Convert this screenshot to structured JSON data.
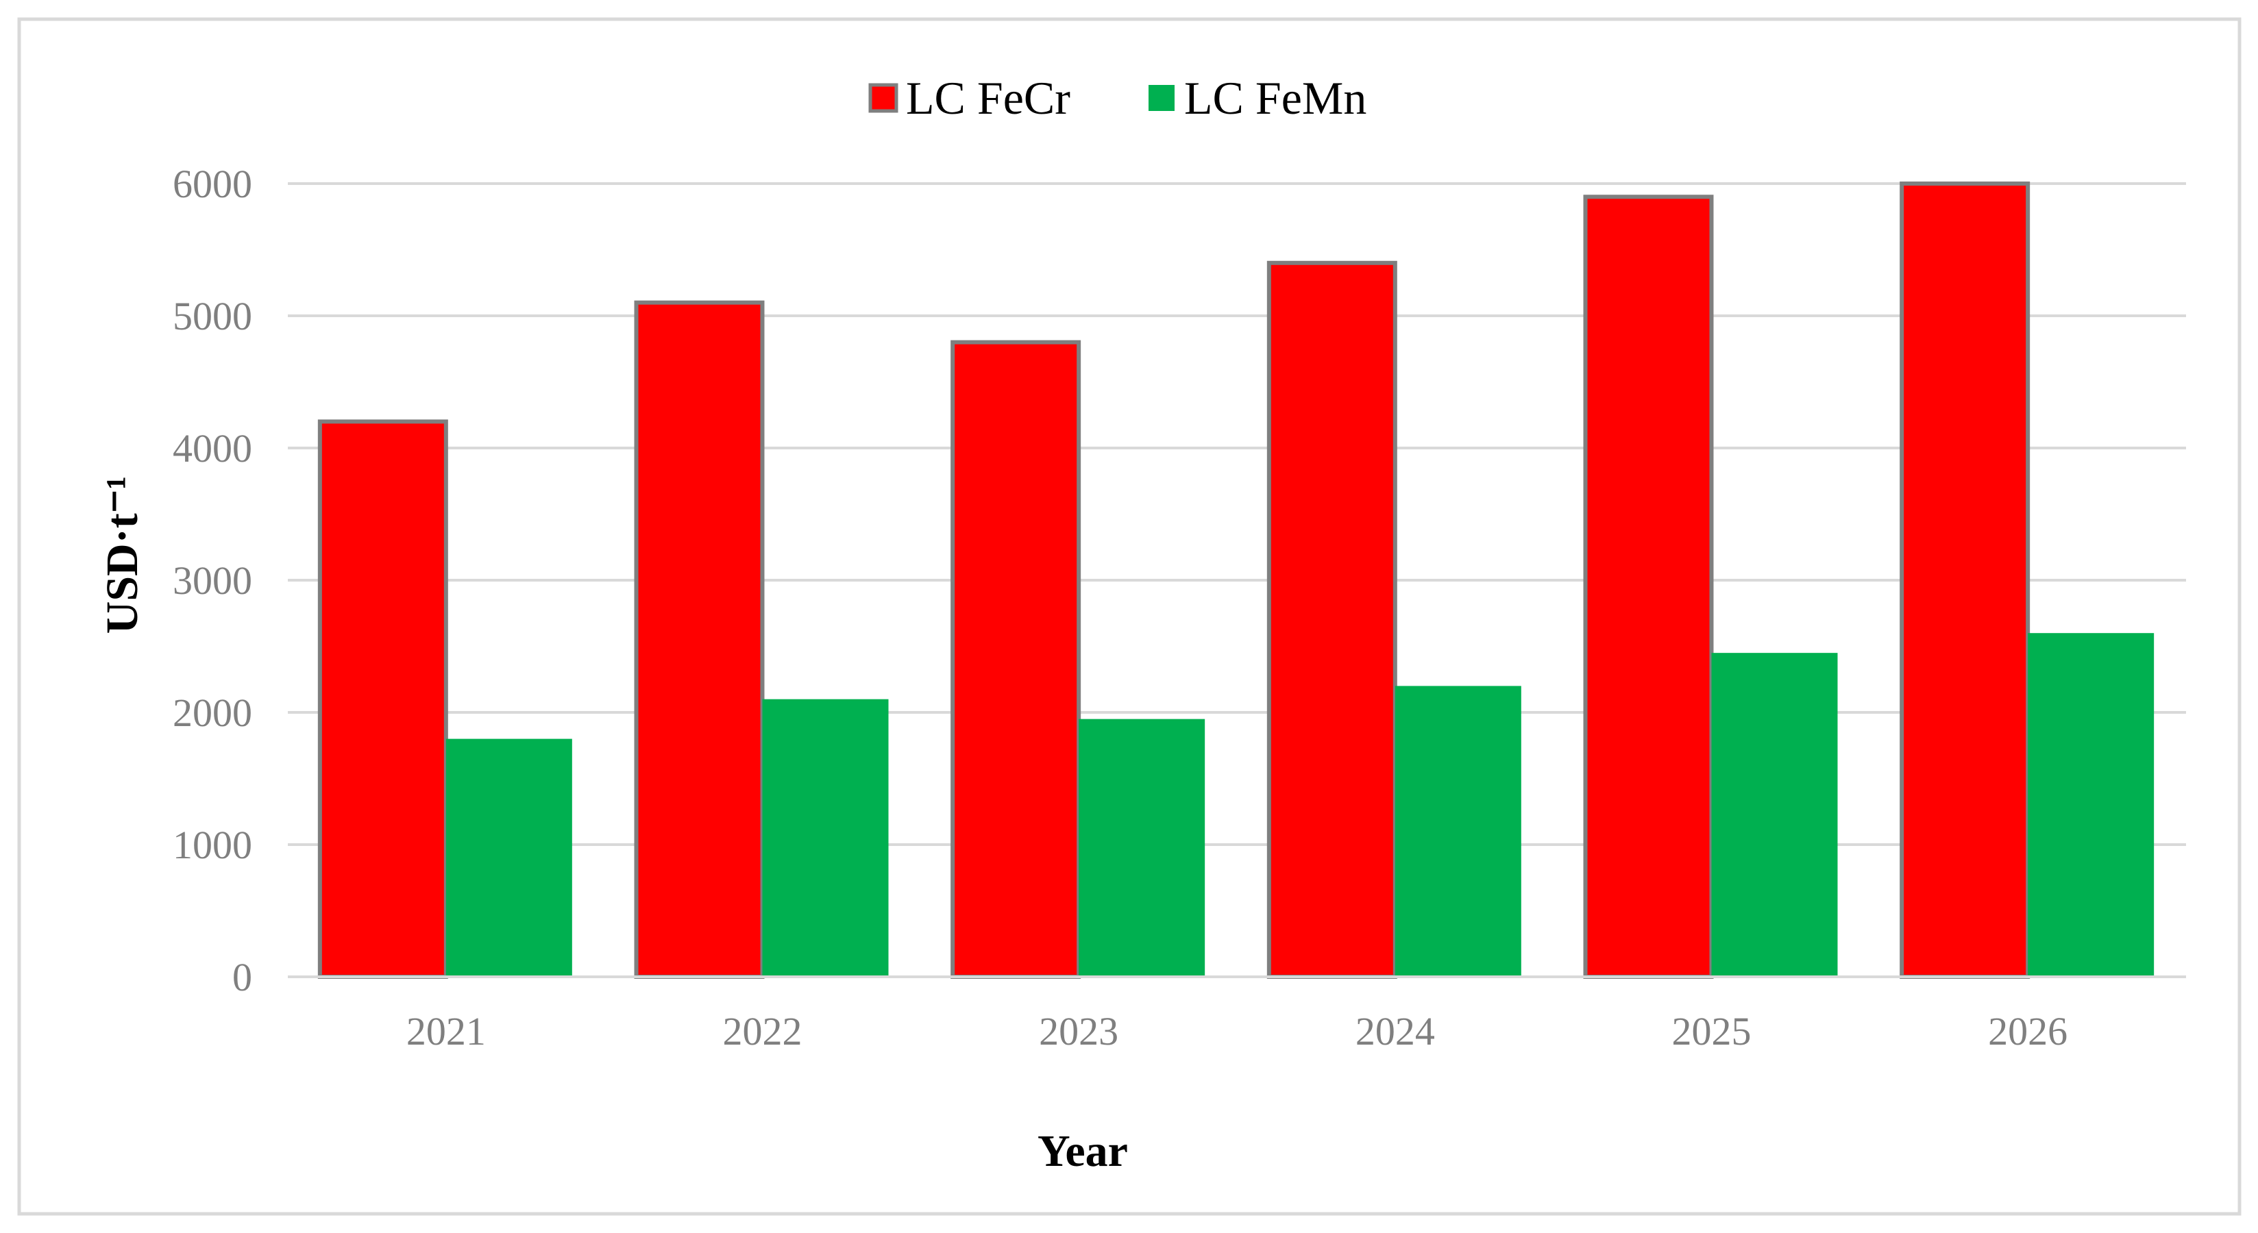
{
  "chart_data": {
    "type": "bar",
    "title": "",
    "xlabel": "Year",
    "ylabel": "USD·t⁻¹",
    "categories": [
      "2021",
      "2022",
      "2023",
      "2024",
      "2025",
      "2026"
    ],
    "series": [
      {
        "name": "LC FeCr",
        "color": "#ff0000",
        "values": [
          4200,
          5100,
          4800,
          5400,
          5900,
          6000
        ]
      },
      {
        "name": "LC FeMn",
        "color": "#00b050",
        "values": [
          1800,
          2100,
          1950,
          2200,
          2450,
          2600
        ]
      }
    ],
    "ylim": [
      0,
      6000
    ],
    "yticks": [
      "0",
      "1000",
      "2000",
      "3000",
      "4000",
      "5000",
      "6000"
    ],
    "grid": true,
    "legend": "top-center"
  }
}
